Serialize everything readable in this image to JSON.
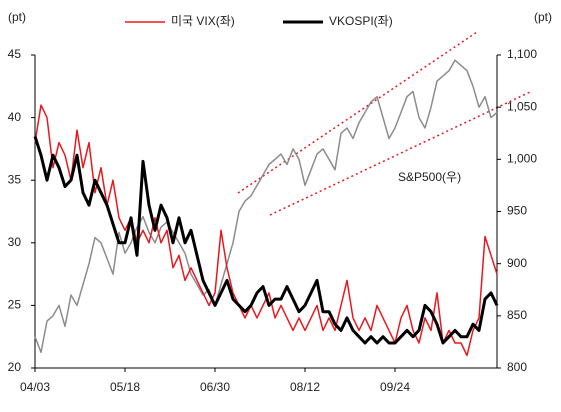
{
  "chart_data": {
    "type": "line",
    "y_label": "(pt)",
    "y2_label": "(pt)",
    "annotation": "S&P500(우)",
    "categories": [
      "04/03",
      null,
      null,
      null,
      null,
      null,
      null,
      null,
      null,
      null,
      null,
      null,
      null,
      null,
      null,
      "05/18",
      null,
      null,
      null,
      null,
      null,
      null,
      null,
      null,
      null,
      null,
      null,
      null,
      null,
      null,
      "06/30",
      null,
      null,
      null,
      null,
      null,
      null,
      null,
      null,
      null,
      null,
      null,
      null,
      null,
      null,
      "08/12",
      null,
      null,
      null,
      null,
      null,
      null,
      null,
      null,
      null,
      null,
      null,
      null,
      null,
      null,
      "09/24",
      null,
      null,
      null,
      null,
      null,
      null,
      null,
      null,
      null,
      null,
      null,
      null,
      null,
      null,
      null,
      null,
      null
    ],
    "series": [
      {
        "name": "미국 VIX(좌)",
        "color": "#e8191e",
        "width": 1.5,
        "values": [
          38,
          41,
          40,
          36,
          38,
          37,
          35,
          39,
          36,
          38,
          34,
          36,
          33,
          35,
          32,
          31,
          32,
          30,
          31,
          30,
          32,
          30,
          31,
          28,
          29,
          27,
          28,
          27,
          26,
          25,
          26,
          31,
          28,
          26,
          25,
          24,
          25,
          24,
          25,
          26,
          24,
          25,
          24,
          23,
          24,
          23,
          24,
          25,
          23,
          24,
          23,
          25,
          27,
          24,
          23,
          24,
          23,
          25,
          24,
          23,
          22,
          24,
          25,
          23,
          22,
          24,
          23,
          26,
          22,
          23,
          22,
          22,
          21,
          23,
          24,
          30.5,
          29,
          27.5
        ]
      },
      {
        "name": "VKOSPI(좌)",
        "color": "#000000",
        "width": 3,
        "values": [
          38.5,
          37,
          35,
          37,
          36,
          34.5,
          35,
          37,
          34,
          33,
          35,
          34,
          33,
          31.5,
          30,
          30,
          32,
          29,
          36.5,
          33,
          31,
          33,
          32,
          30,
          32,
          30,
          31,
          29,
          27,
          26,
          25,
          26,
          27,
          25.5,
          25,
          24.5,
          25,
          26,
          26.5,
          25,
          25.5,
          25.5,
          26.5,
          25.5,
          24.5,
          25,
          26,
          27,
          24.5,
          24.5,
          23.5,
          23,
          24,
          23,
          22.5,
          22,
          22.5,
          22,
          22.5,
          22,
          22,
          22.5,
          23,
          22.5,
          23,
          25,
          24.5,
          23.5,
          22,
          22.5,
          23,
          22.5,
          22.5,
          23.5,
          23,
          25.5,
          26,
          25
        ]
      },
      {
        "axis": "y2",
        "color": "#8c8c8c",
        "width": 1.5,
        "values": [
          830,
          815,
          845,
          850,
          860,
          840,
          870,
          860,
          880,
          900,
          925,
          920,
          905,
          890,
          930,
          910,
          920,
          935,
          945,
          930,
          920,
          935,
          940,
          930,
          920,
          910,
          890,
          880,
          870,
          875,
          860,
          880,
          900,
          920,
          950,
          960,
          965,
          975,
          985,
          995,
          1000,
          1005,
          995,
          1010,
          1000,
          975,
          990,
          1005,
          1010,
          1000,
          990,
          1025,
          1030,
          1020,
          1035,
          1045,
          1055,
          1060,
          1040,
          1020,
          1030,
          1045,
          1060,
          1065,
          1040,
          1030,
          1050,
          1075,
          1080,
          1085,
          1095,
          1090,
          1085,
          1070,
          1050,
          1060,
          1040,
          1045
        ]
      }
    ],
    "ylim": [
      20,
      45
    ],
    "yticks": [
      20,
      25,
      30,
      35,
      40,
      45
    ],
    "y2lim": [
      800,
      1100
    ],
    "y2ticks": [
      800,
      850,
      900,
      950,
      {
        "value": 1000,
        "label": "1,000"
      },
      {
        "value": 1050,
        "label": "1,050"
      },
      {
        "value": 1100,
        "label": "1,100"
      }
    ]
  }
}
